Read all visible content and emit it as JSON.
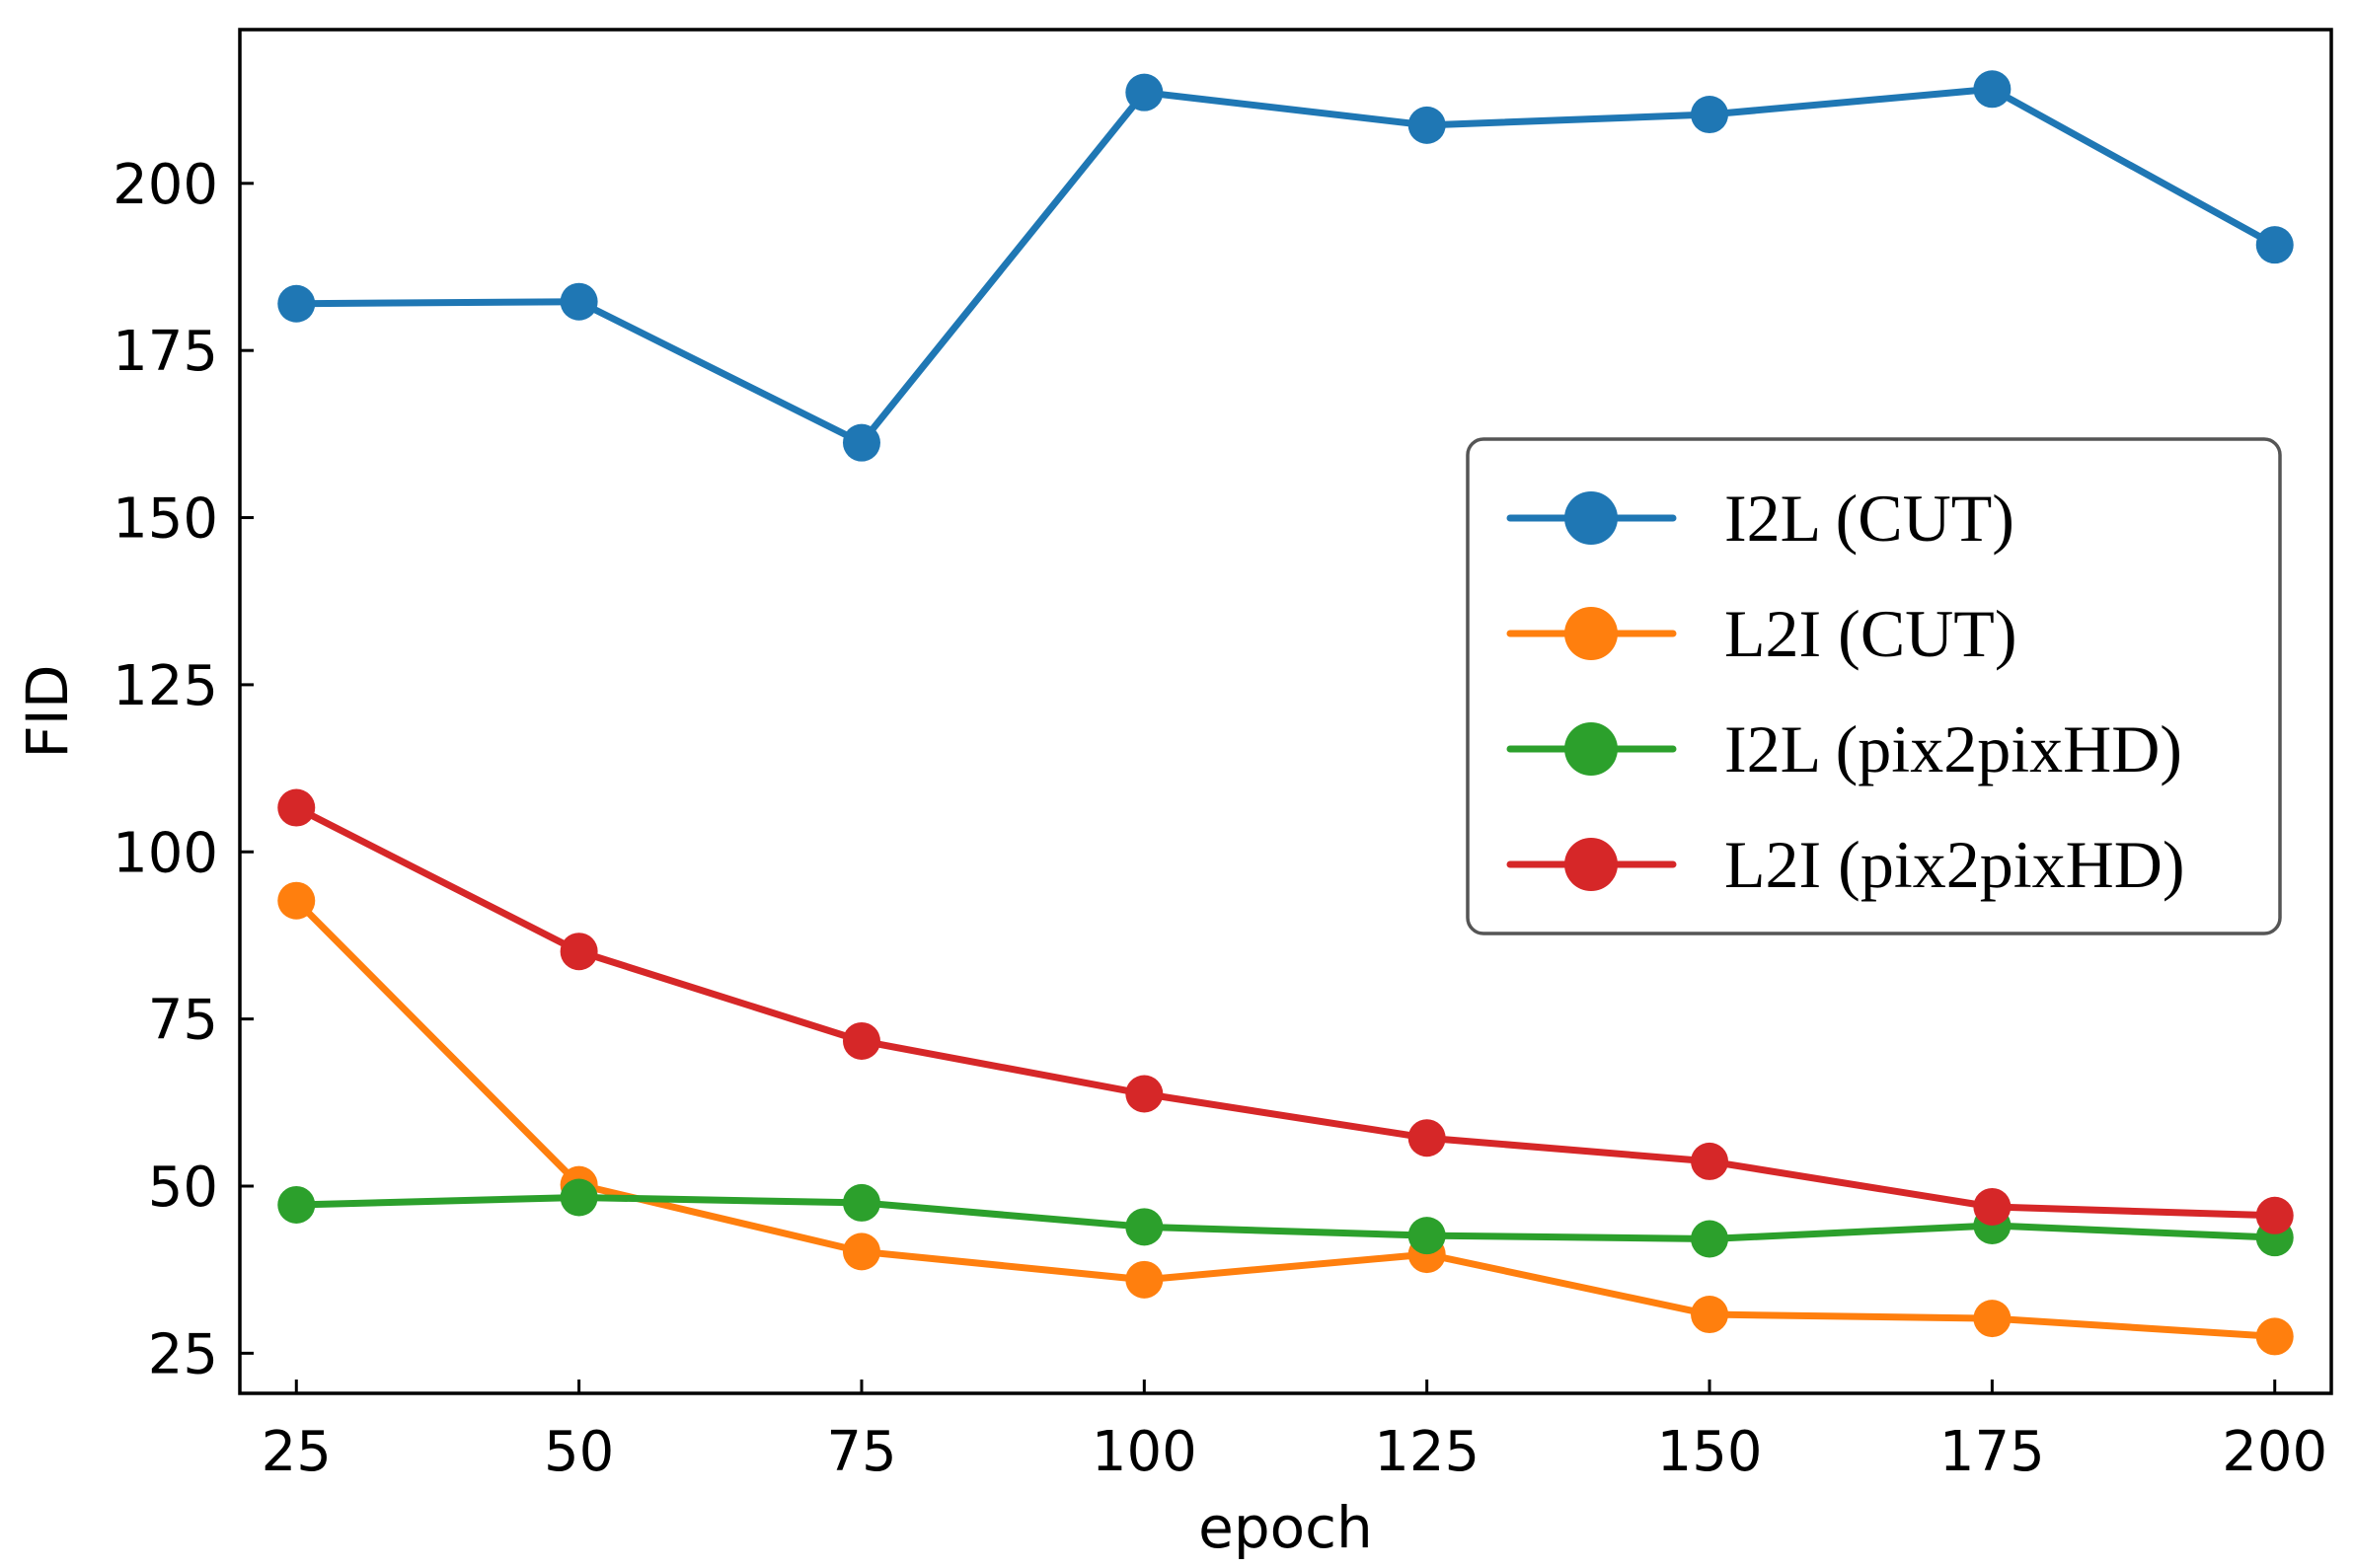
{
  "chart_data": {
    "type": "line",
    "title": "",
    "xlabel": "epoch",
    "ylabel": "FID",
    "x": [
      25,
      50,
      75,
      100,
      125,
      150,
      175,
      200
    ],
    "xticks": [
      25,
      50,
      75,
      100,
      125,
      150,
      175,
      200
    ],
    "yticks": [
      25,
      50,
      75,
      100,
      125,
      150,
      175,
      200
    ],
    "xlim": [
      20,
      205
    ],
    "ylim": [
      19,
      223
    ],
    "grid": false,
    "legend_position": "center-right",
    "series": [
      {
        "name": "I2L (CUT)",
        "color": "#1f77b4",
        "values": [
          182,
          182.3,
          161.2,
          213.6,
          208.7,
          210.3,
          214.1,
          190.8
        ]
      },
      {
        "name": "L2I (CUT)",
        "color": "#ff7f0e",
        "values": [
          92.7,
          50.2,
          40.2,
          36,
          39.8,
          30.8,
          30.2,
          27.5
        ]
      },
      {
        "name": "I2L (pix2pixHD)",
        "color": "#2ca02c",
        "values": [
          47.2,
          48.3,
          47.5,
          43.9,
          42.6,
          42.1,
          44.1,
          42.3
        ]
      },
      {
        "name": "L2I (pix2pixHD)",
        "color": "#d62728",
        "values": [
          106.6,
          85.1,
          71.7,
          63.8,
          57.2,
          53.7,
          46.9,
          45.6
        ]
      }
    ]
  }
}
